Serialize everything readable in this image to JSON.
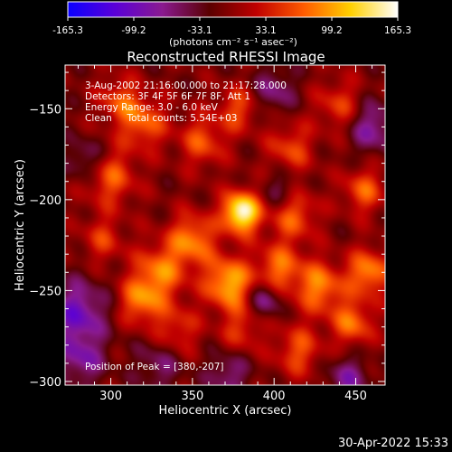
{
  "colorbar": {
    "ticks": [
      "-165.3",
      "-99.2",
      "-33.1",
      "33.1",
      "99.2",
      "165.3"
    ],
    "range": [
      -165.3,
      165.3
    ],
    "unit_label": "(photons cm⁻² s⁻¹ asec⁻²)",
    "stops": [
      "#0a00ff",
      "#5a00d8",
      "#8a1a90",
      "#5a0000",
      "#c00000",
      "#ff5a00",
      "#ffd000",
      "#ffffff"
    ]
  },
  "chart_data": {
    "type": "heatmap",
    "title": "Reconstructed RHESSI Image",
    "xlabel": "Heliocentric X (arcsec)",
    "ylabel": "Heliocentric Y (arcsec)",
    "xlim": [
      272,
      468
    ],
    "ylim": [
      -302,
      -126
    ],
    "x_ticks": [
      300,
      350,
      400,
      450
    ],
    "y_ticks": [
      -150,
      -200,
      -250,
      -300
    ],
    "value_range": [
      -165.3,
      165.3
    ],
    "peak": {
      "x": 380,
      "y": -207
    },
    "blobs": [
      {
        "x": 380,
        "y": -207,
        "amp": 175,
        "s": 8
      },
      {
        "x": 372,
        "y": -246,
        "amp": 120,
        "s": 10
      },
      {
        "x": 350,
        "y": -222,
        "amp": 95,
        "s": 10
      },
      {
        "x": 330,
        "y": -240,
        "amp": 90,
        "s": 11
      },
      {
        "x": 318,
        "y": -256,
        "amp": 85,
        "s": 9
      },
      {
        "x": 403,
        "y": -238,
        "amp": 85,
        "s": 10
      },
      {
        "x": 412,
        "y": -208,
        "amp": 80,
        "s": 10
      },
      {
        "x": 428,
        "y": -248,
        "amp": 95,
        "s": 10
      },
      {
        "x": 458,
        "y": -240,
        "amp": 100,
        "s": 9
      },
      {
        "x": 448,
        "y": -268,
        "amp": 85,
        "s": 9
      },
      {
        "x": 415,
        "y": -283,
        "amp": 70,
        "s": 10
      },
      {
        "x": 300,
        "y": -188,
        "amp": 75,
        "s": 11
      },
      {
        "x": 320,
        "y": -158,
        "amp": 80,
        "s": 10
      },
      {
        "x": 305,
        "y": -145,
        "amp": 65,
        "s": 9
      },
      {
        "x": 356,
        "y": -168,
        "amp": 70,
        "s": 10
      },
      {
        "x": 378,
        "y": -150,
        "amp": 65,
        "s": 9
      },
      {
        "x": 410,
        "y": -172,
        "amp": 65,
        "s": 10
      },
      {
        "x": 440,
        "y": -148,
        "amp": 60,
        "s": 10
      },
      {
        "x": 455,
        "y": -195,
        "amp": 75,
        "s": 9
      },
      {
        "x": 340,
        "y": -272,
        "amp": 60,
        "s": 10
      },
      {
        "x": 295,
        "y": -222,
        "amp": 55,
        "s": 9
      },
      {
        "x": 380,
        "y": -272,
        "amp": 55,
        "s": 9
      },
      {
        "x": 445,
        "y": -298,
        "amp": -60,
        "s": 9
      },
      {
        "x": 280,
        "y": -262,
        "amp": -85,
        "s": 12
      },
      {
        "x": 282,
        "y": -288,
        "amp": -65,
        "s": 10
      },
      {
        "x": 395,
        "y": -255,
        "amp": -70,
        "s": 7
      },
      {
        "x": 460,
        "y": -160,
        "amp": -70,
        "s": 10
      },
      {
        "x": 400,
        "y": -140,
        "amp": -55,
        "s": 9
      },
      {
        "x": 285,
        "y": -178,
        "amp": -55,
        "s": 8
      },
      {
        "x": 405,
        "y": -195,
        "amp": -50,
        "s": 8
      },
      {
        "x": 330,
        "y": -290,
        "amp": -50,
        "s": 10
      },
      {
        "x": 372,
        "y": -296,
        "amp": -55,
        "s": 9
      }
    ]
  },
  "info_lines": [
    " 3-Aug-2002 21:16:00.000 to 21:17:28.000",
    "Detectors: 3F 4F 5F 6F 7F 8F, Att 1",
    "Energy Range: 3.0 - 6.0 keV",
    "Clean     Total counts: 5.54E+03"
  ],
  "peak_label": "Position of Peak = [380,-207]",
  "timestamp": "30-Apr-2022 15:33"
}
